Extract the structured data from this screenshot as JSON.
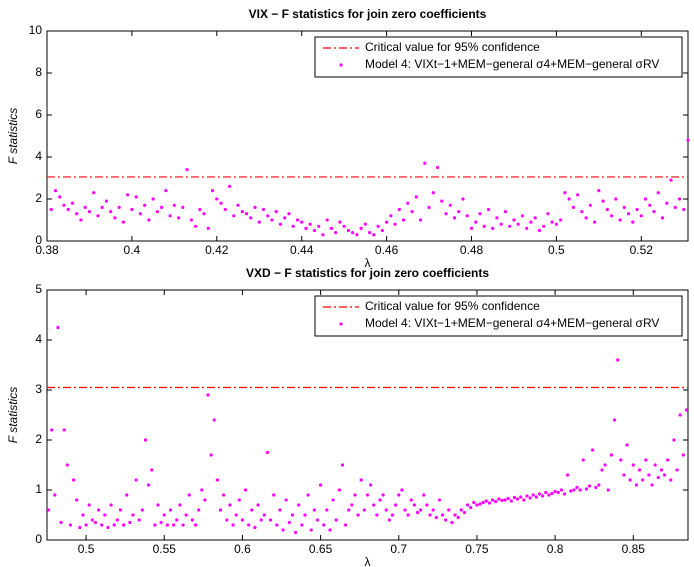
{
  "chart_data": [
    {
      "type": "scatter",
      "title": "VIX − F statistics for join zero coefficients",
      "xlabel": "λ",
      "ylabel": "F statistics",
      "xlim": [
        0.38,
        0.531
      ],
      "ylim": [
        0,
        10
      ],
      "xticks": [
        0.38,
        0.4,
        0.42,
        0.44,
        0.46,
        0.48,
        0.5,
        0.52
      ],
      "yticks": [
        0,
        2,
        4,
        6,
        8,
        10
      ],
      "reference_lines": [
        {
          "name": "Critical value for 95% confidence",
          "value": 3.05,
          "color": "#ff0000"
        }
      ],
      "series": [
        {
          "name": "Model 4: VIXt−1+MEM−general σ4+MEM−general σRV",
          "color": "#ff00ff",
          "x": [
            0.381,
            0.382,
            0.383,
            0.384,
            0.385,
            0.386,
            0.387,
            0.388,
            0.389,
            0.39,
            0.391,
            0.392,
            0.393,
            0.394,
            0.395,
            0.396,
            0.397,
            0.398,
            0.399,
            0.4,
            0.401,
            0.402,
            0.403,
            0.404,
            0.405,
            0.406,
            0.407,
            0.408,
            0.409,
            0.41,
            0.411,
            0.412,
            0.413,
            0.414,
            0.415,
            0.416,
            0.417,
            0.418,
            0.419,
            0.42,
            0.421,
            0.422,
            0.423,
            0.424,
            0.425,
            0.426,
            0.427,
            0.428,
            0.429,
            0.43,
            0.431,
            0.432,
            0.433,
            0.434,
            0.435,
            0.436,
            0.437,
            0.438,
            0.439,
            0.44,
            0.441,
            0.442,
            0.443,
            0.444,
            0.445,
            0.446,
            0.447,
            0.448,
            0.449,
            0.45,
            0.451,
            0.452,
            0.453,
            0.454,
            0.455,
            0.456,
            0.457,
            0.458,
            0.459,
            0.46,
            0.461,
            0.462,
            0.463,
            0.464,
            0.465,
            0.466,
            0.467,
            0.468,
            0.469,
            0.47,
            0.471,
            0.472,
            0.473,
            0.474,
            0.475,
            0.476,
            0.477,
            0.478,
            0.479,
            0.48,
            0.481,
            0.482,
            0.483,
            0.484,
            0.485,
            0.486,
            0.487,
            0.488,
            0.489,
            0.49,
            0.491,
            0.492,
            0.493,
            0.494,
            0.495,
            0.496,
            0.497,
            0.498,
            0.499,
            0.5,
            0.501,
            0.502,
            0.503,
            0.504,
            0.505,
            0.506,
            0.507,
            0.508,
            0.509,
            0.51,
            0.511,
            0.512,
            0.513,
            0.514,
            0.515,
            0.516,
            0.517,
            0.518,
            0.519,
            0.52,
            0.521,
            0.522,
            0.523,
            0.524,
            0.525,
            0.526,
            0.527,
            0.528,
            0.529,
            0.53,
            0.531
          ],
          "values": [
            1.5,
            2.4,
            2.1,
            1.7,
            1.5,
            1.8,
            1.3,
            1.0,
            1.6,
            1.4,
            2.3,
            1.2,
            1.6,
            1.9,
            1.4,
            1.1,
            1.6,
            0.9,
            2.2,
            1.5,
            2.1,
            1.3,
            1.7,
            1.0,
            2.0,
            1.4,
            1.6,
            2.4,
            1.2,
            1.7,
            1.1,
            1.6,
            3.4,
            1.0,
            0.7,
            1.5,
            1.3,
            0.6,
            2.4,
            2.0,
            1.8,
            1.5,
            2.6,
            1.2,
            1.7,
            1.4,
            1.3,
            1.1,
            1.6,
            0.9,
            1.5,
            1.2,
            1.0,
            1.4,
            0.8,
            1.1,
            1.3,
            0.7,
            1.0,
            0.9,
            0.6,
            0.8,
            0.5,
            0.7,
            0.3,
            1.0,
            0.6,
            0.4,
            0.9,
            0.7,
            0.5,
            0.4,
            0.3,
            0.6,
            0.8,
            0.4,
            0.3,
            0.7,
            0.5,
            0.9,
            1.2,
            0.8,
            1.5,
            1.0,
            1.8,
            1.4,
            2.1,
            1.0,
            3.7,
            1.6,
            2.3,
            3.5,
            1.9,
            1.3,
            1.7,
            1.1,
            1.4,
            2.0,
            1.2,
            0.6,
            0.9,
            1.3,
            0.7,
            1.5,
            0.6,
            1.1,
            0.8,
            1.4,
            0.7,
            1.0,
            0.8,
            1.2,
            0.6,
            0.9,
            1.1,
            0.5,
            0.7,
            1.3,
            0.9,
            0.8,
            1.0,
            2.3,
            2.0,
            1.6,
            2.2,
            1.4,
            1.1,
            1.7,
            0.9,
            2.4,
            1.9,
            1.5,
            1.2,
            2.0,
            1.0,
            1.6,
            1.3,
            0.9,
            1.5,
            1.2,
            2.0,
            1.7,
            1.4,
            2.3,
            1.1,
            1.8,
            2.9,
            1.6,
            2.0,
            1.5,
            4.8
          ]
        }
      ]
    },
    {
      "type": "scatter",
      "title": "VXD − F statistics for join zero coefficients",
      "xlabel": "λ",
      "ylabel": "F statistics",
      "xlim": [
        0.475,
        0.885
      ],
      "ylim": [
        0,
        5
      ],
      "xticks": [
        0.5,
        0.55,
        0.6,
        0.65,
        0.7,
        0.75,
        0.8,
        0.85
      ],
      "yticks": [
        0,
        1,
        2,
        3,
        4,
        5
      ],
      "reference_lines": [
        {
          "name": "Critical value for 95% confidence",
          "value": 3.05,
          "color": "#ff0000"
        }
      ],
      "series": [
        {
          "name": "Model 4: VIXt−1+MEM−general σ4+MEM−general σRV",
          "color": "#ff00ff",
          "x": [
            0.476,
            0.478,
            0.48,
            0.482,
            0.484,
            0.486,
            0.488,
            0.49,
            0.492,
            0.494,
            0.496,
            0.498,
            0.5,
            0.502,
            0.504,
            0.506,
            0.508,
            0.51,
            0.512,
            0.514,
            0.516,
            0.518,
            0.52,
            0.522,
            0.524,
            0.526,
            0.528,
            0.53,
            0.532,
            0.534,
            0.536,
            0.538,
            0.54,
            0.542,
            0.544,
            0.546,
            0.548,
            0.55,
            0.552,
            0.554,
            0.556,
            0.558,
            0.56,
            0.562,
            0.564,
            0.566,
            0.568,
            0.57,
            0.572,
            0.574,
            0.576,
            0.578,
            0.58,
            0.582,
            0.584,
            0.586,
            0.588,
            0.59,
            0.592,
            0.594,
            0.596,
            0.598,
            0.6,
            0.602,
            0.604,
            0.606,
            0.608,
            0.61,
            0.612,
            0.614,
            0.616,
            0.618,
            0.62,
            0.622,
            0.624,
            0.626,
            0.628,
            0.63,
            0.632,
            0.634,
            0.636,
            0.638,
            0.64,
            0.642,
            0.644,
            0.646,
            0.648,
            0.65,
            0.652,
            0.654,
            0.656,
            0.658,
            0.66,
            0.662,
            0.664,
            0.666,
            0.668,
            0.67,
            0.672,
            0.674,
            0.676,
            0.678,
            0.68,
            0.682,
            0.684,
            0.686,
            0.688,
            0.69,
            0.692,
            0.694,
            0.696,
            0.698,
            0.7,
            0.702,
            0.704,
            0.706,
            0.708,
            0.71,
            0.712,
            0.714,
            0.716,
            0.718,
            0.72,
            0.722,
            0.724,
            0.726,
            0.728,
            0.73,
            0.732,
            0.734,
            0.736,
            0.738,
            0.74,
            0.742,
            0.744,
            0.746,
            0.748,
            0.75,
            0.752,
            0.754,
            0.756,
            0.758,
            0.76,
            0.762,
            0.764,
            0.766,
            0.768,
            0.77,
            0.772,
            0.774,
            0.776,
            0.778,
            0.78,
            0.782,
            0.784,
            0.786,
            0.788,
            0.79,
            0.792,
            0.794,
            0.796,
            0.798,
            0.8,
            0.802,
            0.804,
            0.806,
            0.808,
            0.81,
            0.812,
            0.814,
            0.816,
            0.818,
            0.82,
            0.822,
            0.824,
            0.826,
            0.828,
            0.83,
            0.832,
            0.834,
            0.836,
            0.838,
            0.84,
            0.842,
            0.844,
            0.846,
            0.848,
            0.85,
            0.852,
            0.854,
            0.856,
            0.858,
            0.86,
            0.862,
            0.864,
            0.866,
            0.868,
            0.87,
            0.872,
            0.874,
            0.876,
            0.878,
            0.88,
            0.882,
            0.884
          ],
          "values": [
            0.6,
            2.2,
            0.9,
            4.25,
            0.35,
            2.2,
            1.5,
            0.3,
            1.2,
            0.8,
            0.25,
            0.5,
            0.3,
            0.7,
            0.4,
            0.35,
            0.6,
            0.3,
            0.5,
            0.25,
            0.7,
            0.3,
            0.4,
            0.6,
            0.3,
            0.9,
            0.35,
            0.5,
            1.2,
            0.4,
            0.6,
            2.0,
            1.1,
            1.4,
            0.3,
            0.7,
            0.35,
            0.5,
            0.3,
            0.6,
            0.3,
            0.4,
            0.7,
            0.3,
            0.5,
            0.9,
            0.4,
            0.3,
            0.6,
            1.0,
            0.8,
            2.9,
            1.7,
            2.4,
            1.2,
            0.6,
            0.9,
            0.4,
            0.7,
            0.3,
            0.5,
            0.8,
            0.4,
            1.0,
            0.3,
            0.6,
            0.25,
            0.7,
            0.4,
            0.5,
            1.75,
            0.4,
            0.9,
            0.3,
            0.6,
            0.2,
            0.8,
            0.35,
            0.5,
            0.15,
            0.7,
            0.3,
            0.5,
            0.9,
            0.2,
            0.6,
            0.4,
            1.1,
            0.3,
            0.6,
            0.2,
            0.8,
            0.4,
            1.0,
            1.5,
            0.3,
            0.6,
            0.7,
            0.9,
            0.5,
            1.2,
            0.6,
            0.9,
            1.1,
            0.7,
            0.5,
            0.8,
            0.9,
            0.6,
            0.4,
            0.5,
            0.7,
            0.9,
            1.0,
            0.6,
            0.5,
            0.8,
            0.7,
            0.55,
            0.6,
            0.9,
            0.7,
            0.5,
            0.6,
            0.45,
            0.8,
            0.5,
            0.4,
            0.6,
            0.35,
            0.5,
            0.45,
            0.6,
            0.55,
            0.7,
            0.65,
            0.75,
            0.7,
            0.72,
            0.75,
            0.78,
            0.74,
            0.8,
            0.77,
            0.82,
            0.79,
            0.8,
            0.83,
            0.78,
            0.85,
            0.82,
            0.86,
            0.8,
            0.88,
            0.84,
            0.9,
            0.86,
            0.92,
            0.88,
            0.95,
            0.9,
            0.93,
            0.97,
            0.95,
            1.0,
            0.92,
            1.3,
            0.98,
            1.0,
            1.05,
            1.0,
            1.6,
            1.02,
            1.08,
            1.8,
            1.05,
            1.1,
            1.4,
            1.5,
            1.0,
            1.7,
            2.4,
            3.6,
            1.6,
            1.3,
            1.9,
            1.2,
            1.5,
            1.1,
            1.4,
            1.2,
            1.6,
            1.3,
            1.1,
            1.5,
            1.25,
            1.4,
            1.3,
            1.6,
            1.2,
            2.0,
            1.4,
            2.5,
            1.7,
            2.6
          ]
        }
      ]
    }
  ]
}
